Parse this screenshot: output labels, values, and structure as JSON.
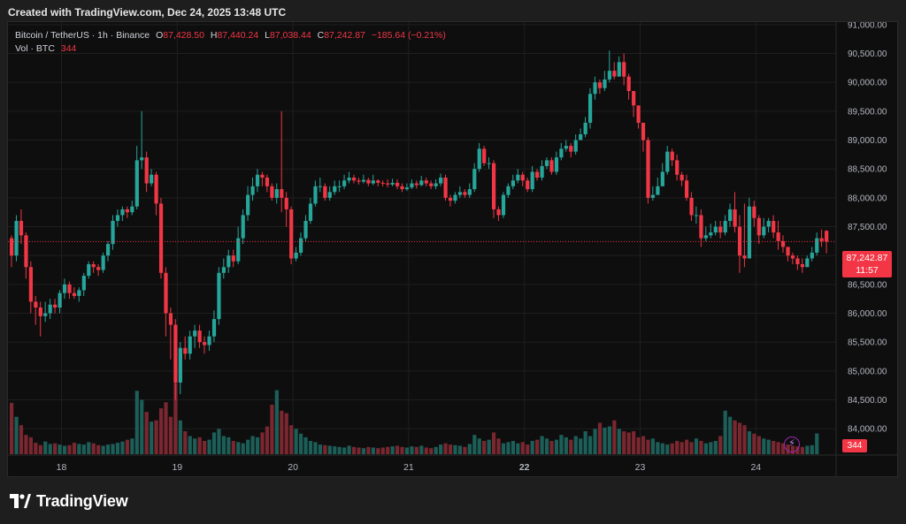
{
  "header": {
    "created_text": "Created with TradingView.com, Dec 24, 2025 13:48 UTC"
  },
  "legend": {
    "symbol": "Bitcoin / TetherUS · 1h · Binance",
    "open_label": "O",
    "open": "87,428.50",
    "high_label": "H",
    "high": "87,440.24",
    "low_label": "L",
    "low": "87,038.44",
    "close_label": "C",
    "close": "87,242.87",
    "change": "−185.64 (−0.21%)",
    "vol_label": "Vol · BTC",
    "vol_value": "344"
  },
  "last_price": {
    "value": "87,242.87",
    "countdown": "11:57"
  },
  "volume_tag": "344",
  "footer": {
    "logo_text": "TradingView"
  },
  "colors": {
    "up": "#26a69a",
    "down": "#f23645",
    "background": "#0e0e0e",
    "grid": "#1f1f1f"
  },
  "chart_data": {
    "type": "candlestick",
    "title": "",
    "y_ticks": [
      "84,000.00",
      "84,500.00",
      "85,000.00",
      "85,500.00",
      "86,000.00",
      "86,500.00",
      "87,000.00",
      "87,500.00",
      "88,000.00",
      "88,500.00",
      "89,000.00",
      "89,500.00",
      "90,000.00",
      "90,500.00",
      "91,000.00"
    ],
    "y_tick_values": [
      84000,
      84500,
      85000,
      85500,
      86000,
      86500,
      87000,
      87500,
      88000,
      88500,
      89000,
      89500,
      90000,
      90500,
      91000
    ],
    "x_ticks": [
      "18",
      "19",
      "20",
      "21",
      "22",
      "23",
      "24"
    ],
    "x_tick_hours": [
      10,
      34,
      58,
      82,
      106,
      130,
      154
    ],
    "ylim": [
      83850,
      91350
    ],
    "hours_shown": 162,
    "last_price": 87242.87,
    "candles_close": [
      87000,
      87600,
      87350,
      86800,
      86200,
      86100,
      85950,
      86000,
      86150,
      86100,
      86350,
      86500,
      86350,
      86300,
      86400,
      86650,
      86850,
      86800,
      86750,
      87000,
      87200,
      87600,
      87700,
      87800,
      87750,
      87850,
      88650,
      88700,
      88250,
      88400,
      87900,
      86700,
      86000,
      85800,
      84800,
      85400,
      85300,
      85600,
      85700,
      85500,
      85450,
      85600,
      85900,
      86700,
      86800,
      87000,
      86900,
      87300,
      87700,
      88050,
      88200,
      88400,
      88350,
      88200,
      88000,
      88150,
      88000,
      87800,
      86950,
      87050,
      87300,
      87600,
      87900,
      88200,
      88200,
      88000,
      88100,
      88200,
      88200,
      88300,
      88350,
      88300,
      88280,
      88310,
      88250,
      88300,
      88260,
      88250,
      88230,
      88260,
      88200,
      88150,
      88180,
      88250,
      88220,
      88300,
      88250,
      88200,
      88250,
      88350,
      88000,
      87950,
      88050,
      88100,
      88050,
      88150,
      88500,
      88850,
      88600,
      88600,
      87800,
      87700,
      88050,
      88200,
      88300,
      88400,
      88300,
      88150,
      88450,
      88350,
      88550,
      88650,
      88450,
      88700,
      88850,
      88900,
      88800,
      89000,
      89100,
      89300,
      89800,
      90000,
      89900,
      90050,
      90200,
      90100,
      90350,
      90100,
      89850,
      89600,
      89300,
      89000,
      88000,
      88050,
      88200,
      88450,
      88800,
      88650,
      88400,
      88300,
      88000,
      87700,
      87700,
      87300,
      87350,
      87400,
      87500,
      87400,
      87600,
      87800,
      87500,
      87000,
      86950,
      87850,
      87650,
      87350,
      87500,
      87600,
      87400,
      87250,
      87150,
      87000,
      86950,
      86850,
      86800,
      86950,
      87050,
      87300,
      87250,
      87242
    ],
    "candles_open": [
      87300,
      87000,
      87600,
      87350,
      86800,
      86200,
      86100,
      85950,
      86000,
      86150,
      86100,
      86350,
      86500,
      86350,
      86300,
      86400,
      86650,
      86850,
      86800,
      86750,
      87000,
      87200,
      87600,
      87700,
      87800,
      87750,
      87850,
      88650,
      88700,
      88250,
      88400,
      87900,
      86700,
      86000,
      85800,
      84800,
      85400,
      85300,
      85600,
      85700,
      85500,
      85450,
      85600,
      85900,
      86700,
      86800,
      87000,
      86900,
      87300,
      87700,
      88050,
      88200,
      88400,
      88350,
      88200,
      88000,
      88150,
      88000,
      87800,
      86950,
      87050,
      87300,
      87600,
      87900,
      88200,
      88200,
      88000,
      88100,
      88200,
      88200,
      88300,
      88350,
      88300,
      88280,
      88310,
      88250,
      88300,
      88260,
      88250,
      88230,
      88260,
      88200,
      88150,
      88180,
      88250,
      88220,
      88300,
      88250,
      88200,
      88250,
      88350,
      88000,
      87950,
      88050,
      88100,
      88050,
      88150,
      88500,
      88850,
      88600,
      88600,
      87800,
      87700,
      88050,
      88200,
      88300,
      88400,
      88300,
      88150,
      88450,
      88350,
      88550,
      88650,
      88450,
      88700,
      88850,
      88900,
      88800,
      89000,
      89100,
      89300,
      89800,
      90000,
      89900,
      90050,
      90200,
      90100,
      90350,
      90100,
      89850,
      89600,
      89300,
      89000,
      88000,
      88050,
      88200,
      88450,
      88800,
      88650,
      88400,
      88300,
      88000,
      87700,
      87700,
      87300,
      87350,
      87400,
      87500,
      87400,
      87600,
      87800,
      87500,
      87000,
      86950,
      87850,
      87650,
      87350,
      87500,
      87600,
      87400,
      87250,
      87150,
      87000,
      86950,
      86850,
      86800,
      86950,
      87050,
      87300,
      87428
    ],
    "volumes": [
      850,
      620,
      480,
      320,
      280,
      190,
      150,
      210,
      170,
      180,
      160,
      140,
      150,
      190,
      170,
      160,
      200,
      180,
      150,
      140,
      160,
      170,
      190,
      210,
      240,
      260,
      1050,
      900,
      700,
      540,
      560,
      760,
      860,
      620,
      1180,
      560,
      380,
      300,
      260,
      280,
      220,
      240,
      360,
      420,
      300,
      280,
      220,
      200,
      180,
      240,
      300,
      280,
      360,
      460,
      820,
      1060,
      720,
      680,
      480,
      420,
      340,
      280,
      220,
      200,
      160,
      150,
      140,
      130,
      120,
      110,
      140,
      120,
      110,
      100,
      120,
      110,
      100,
      110,
      120,
      130,
      140,
      120,
      110,
      130,
      120,
      140,
      110,
      100,
      120,
      160,
      180,
      160,
      150,
      140,
      120,
      170,
      320,
      260,
      220,
      240,
      360,
      260,
      180,
      200,
      220,
      180,
      200,
      160,
      220,
      240,
      300,
      260,
      220,
      240,
      320,
      280,
      240,
      300,
      260,
      380,
      300,
      420,
      520,
      440,
      460,
      560,
      420,
      380,
      360,
      380,
      280,
      300,
      240,
      260,
      200,
      180,
      160,
      180,
      220,
      200,
      240,
      200,
      260,
      220,
      180,
      200,
      220,
      300,
      720,
      620,
      560,
      520,
      480,
      380,
      340,
      300,
      260,
      240,
      220,
      200,
      180,
      160,
      140,
      130,
      120,
      140,
      150,
      344
    ],
    "candles_range": [
      [
        87350,
        86800
      ],
      [
        87700,
        86900
      ],
      [
        87800,
        87200
      ],
      [
        87400,
        86600
      ],
      [
        86900,
        86000
      ],
      [
        86300,
        85800
      ],
      [
        86200,
        85600
      ],
      [
        86200,
        85850
      ],
      [
        86250,
        85900
      ],
      [
        86250,
        86000
      ],
      [
        86400,
        86000
      ],
      [
        86600,
        86250
      ],
      [
        86550,
        86250
      ],
      [
        86450,
        86250
      ],
      [
        86450,
        86200
      ],
      [
        86700,
        86300
      ],
      [
        86900,
        86600
      ],
      [
        86900,
        86700
      ],
      [
        86850,
        86650
      ],
      [
        87050,
        86700
      ],
      [
        87250,
        86900
      ],
      [
        87700,
        87100
      ],
      [
        87800,
        87500
      ],
      [
        87850,
        87600
      ],
      [
        87850,
        87650
      ],
      [
        87950,
        87700
      ],
      [
        88900,
        87800
      ],
      [
        89500,
        88500
      ],
      [
        88800,
        88100
      ],
      [
        88500,
        88200
      ],
      [
        88450,
        87700
      ],
      [
        88000,
        86600
      ],
      [
        86800,
        85600
      ],
      [
        86100,
        85200
      ],
      [
        85900,
        84500
      ],
      [
        85500,
        84600
      ],
      [
        85600,
        85200
      ],
      [
        85700,
        85200
      ],
      [
        85800,
        85400
      ],
      [
        85800,
        85400
      ],
      [
        85600,
        85300
      ],
      [
        85700,
        85350
      ],
      [
        86050,
        85500
      ],
      [
        86800,
        85800
      ],
      [
        86950,
        86600
      ],
      [
        87100,
        86700
      ],
      [
        87100,
        86800
      ],
      [
        87500,
        86850
      ],
      [
        87800,
        87200
      ],
      [
        88200,
        87600
      ],
      [
        88350,
        87950
      ],
      [
        88500,
        88100
      ],
      [
        88450,
        88200
      ],
      [
        88400,
        88100
      ],
      [
        88250,
        87950
      ],
      [
        88250,
        87900
      ],
      [
        89500,
        87750
      ],
      [
        88100,
        87500
      ],
      [
        87850,
        86850
      ],
      [
        87150,
        86900
      ],
      [
        87400,
        87000
      ],
      [
        87700,
        87250
      ],
      [
        88000,
        87550
      ],
      [
        88300,
        87850
      ],
      [
        88350,
        88100
      ],
      [
        88250,
        87950
      ],
      [
        88200,
        87950
      ],
      [
        88300,
        88050
      ],
      [
        88300,
        88100
      ],
      [
        88400,
        88150
      ],
      [
        88450,
        88250
      ],
      [
        88400,
        88250
      ],
      [
        88350,
        88230
      ],
      [
        88400,
        88250
      ],
      [
        88350,
        88200
      ],
      [
        88400,
        88220
      ],
      [
        88320,
        88200
      ],
      [
        88300,
        88200
      ],
      [
        88320,
        88180
      ],
      [
        88330,
        88200
      ],
      [
        88320,
        88150
      ],
      [
        88250,
        88100
      ],
      [
        88250,
        88120
      ],
      [
        88320,
        88150
      ],
      [
        88300,
        88160
      ],
      [
        88380,
        88200
      ],
      [
        88350,
        88200
      ],
      [
        88300,
        88150
      ],
      [
        88320,
        88150
      ],
      [
        88420,
        88200
      ],
      [
        88400,
        87950
      ],
      [
        88050,
        87850
      ],
      [
        88100,
        87900
      ],
      [
        88200,
        88000
      ],
      [
        88150,
        88000
      ],
      [
        88250,
        88000
      ],
      [
        88600,
        88100
      ],
      [
        88950,
        88450
      ],
      [
        88900,
        88550
      ],
      [
        88700,
        88500
      ],
      [
        88650,
        87650
      ],
      [
        87850,
        87600
      ],
      [
        88100,
        87650
      ],
      [
        88250,
        88000
      ],
      [
        88400,
        88150
      ],
      [
        88500,
        88250
      ],
      [
        88450,
        88200
      ],
      [
        88350,
        88100
      ],
      [
        88550,
        88100
      ],
      [
        88500,
        88300
      ],
      [
        88650,
        88300
      ],
      [
        88700,
        88500
      ],
      [
        88700,
        88400
      ],
      [
        88800,
        88400
      ],
      [
        88950,
        88650
      ],
      [
        89000,
        88800
      ],
      [
        88950,
        88700
      ],
      [
        89100,
        88750
      ],
      [
        89200,
        89000
      ],
      [
        89400,
        89050
      ],
      [
        89900,
        89200
      ],
      [
        90100,
        89700
      ],
      [
        90050,
        89800
      ],
      [
        90200,
        89850
      ],
      [
        90550,
        90000
      ],
      [
        90350,
        90050
      ],
      [
        90450,
        90150
      ],
      [
        90500,
        89950
      ],
      [
        90150,
        89700
      ],
      [
        89800,
        89400
      ],
      [
        89500,
        89200
      ],
      [
        89300,
        88800
      ],
      [
        89050,
        87900
      ],
      [
        88200,
        87950
      ],
      [
        88350,
        88050
      ],
      [
        88600,
        88250
      ],
      [
        88900,
        88400
      ],
      [
        88850,
        88550
      ],
      [
        88750,
        88300
      ],
      [
        88450,
        88200
      ],
      [
        88400,
        87950
      ],
      [
        88100,
        87600
      ],
      [
        87850,
        87550
      ],
      [
        87800,
        87150
      ],
      [
        87500,
        87250
      ],
      [
        87550,
        87300
      ],
      [
        87600,
        87350
      ],
      [
        87600,
        87300
      ],
      [
        87700,
        87350
      ],
      [
        87900,
        87500
      ],
      [
        88100,
        87400
      ],
      [
        87700,
        86700
      ],
      [
        87900,
        86800
      ],
      [
        88000,
        87600
      ],
      [
        87950,
        87500
      ],
      [
        87700,
        87200
      ],
      [
        87650,
        87300
      ],
      [
        87650,
        87400
      ],
      [
        87700,
        87300
      ],
      [
        87600,
        87100
      ],
      [
        87350,
        87050
      ],
      [
        87150,
        86900
      ],
      [
        87050,
        86850
      ],
      [
        87000,
        86750
      ],
      [
        86950,
        86700
      ],
      [
        87000,
        86800
      ],
      [
        87150,
        86900
      ],
      [
        87400,
        87000
      ],
      [
        87450,
        87150
      ],
      [
        87440,
        87038
      ]
    ]
  }
}
